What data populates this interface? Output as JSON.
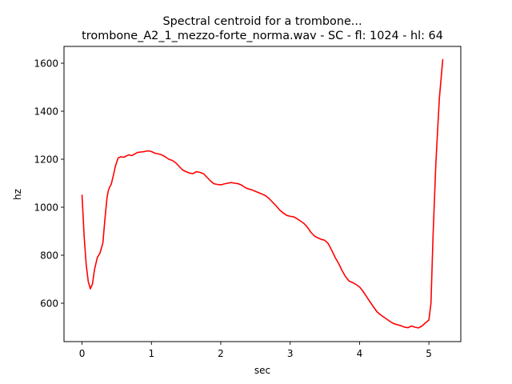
{
  "chart_data": {
    "type": "line",
    "title": "Spectral centroid for a trombone...",
    "subtitle": "trombone_A2_1_mezzo-forte_norma.wav - SC - fl: 1024 - hl: 64",
    "xlabel": "sec",
    "ylabel": "hz",
    "xlim": [
      -0.26,
      5.46
    ],
    "ylim": [
      440,
      1670
    ],
    "xticks": [
      0,
      1,
      2,
      3,
      4,
      5
    ],
    "yticks": [
      600,
      800,
      1000,
      1200,
      1400,
      1600
    ],
    "grid": false,
    "series": [
      {
        "color": "#ff0000",
        "x": [
          0.0,
          0.03,
          0.06,
          0.09,
          0.12,
          0.15,
          0.18,
          0.22,
          0.26,
          0.3,
          0.33,
          0.36,
          0.38,
          0.4,
          0.42,
          0.45,
          0.48,
          0.52,
          0.56,
          0.6,
          0.63,
          0.67,
          0.72,
          0.76,
          0.8,
          0.85,
          0.9,
          0.95,
          1.0,
          1.05,
          1.1,
          1.15,
          1.2,
          1.25,
          1.3,
          1.35,
          1.4,
          1.45,
          1.5,
          1.55,
          1.6,
          1.65,
          1.7,
          1.75,
          1.8,
          1.85,
          1.9,
          1.95,
          2.0,
          2.05,
          2.1,
          2.15,
          2.2,
          2.25,
          2.3,
          2.35,
          2.4,
          2.45,
          2.5,
          2.55,
          2.6,
          2.65,
          2.7,
          2.75,
          2.8,
          2.85,
          2.9,
          2.95,
          3.0,
          3.05,
          3.1,
          3.15,
          3.2,
          3.25,
          3.3,
          3.35,
          3.4,
          3.45,
          3.5,
          3.55,
          3.6,
          3.65,
          3.7,
          3.75,
          3.8,
          3.85,
          3.9,
          3.95,
          4.0,
          4.05,
          4.1,
          4.15,
          4.2,
          4.25,
          4.3,
          4.35,
          4.4,
          4.45,
          4.5,
          4.55,
          4.6,
          4.65,
          4.7,
          4.75,
          4.8,
          4.85,
          4.9,
          4.95,
          4.98,
          5.0,
          5.03,
          5.06,
          5.1,
          5.15,
          5.2
        ],
        "y": [
          1050,
          880,
          760,
          690,
          660,
          680,
          740,
          790,
          810,
          850,
          950,
          1040,
          1070,
          1085,
          1095,
          1130,
          1170,
          1205,
          1210,
          1208,
          1212,
          1218,
          1215,
          1222,
          1228,
          1230,
          1232,
          1235,
          1232,
          1225,
          1222,
          1218,
          1210,
          1200,
          1195,
          1185,
          1170,
          1155,
          1148,
          1142,
          1140,
          1148,
          1145,
          1140,
          1125,
          1110,
          1098,
          1095,
          1093,
          1097,
          1100,
          1103,
          1100,
          1098,
          1092,
          1082,
          1076,
          1072,
          1066,
          1060,
          1054,
          1047,
          1035,
          1020,
          1005,
          988,
          976,
          966,
          962,
          960,
          952,
          942,
          932,
          916,
          895,
          880,
          872,
          866,
          862,
          848,
          820,
          790,
          765,
          735,
          710,
          692,
          686,
          678,
          668,
          650,
          628,
          606,
          585,
          565,
          552,
          542,
          532,
          522,
          514,
          510,
          506,
          500,
          498,
          505,
          500,
          497,
          505,
          518,
          525,
          530,
          600,
          880,
          1180,
          1450,
          1615
        ]
      }
    ]
  }
}
